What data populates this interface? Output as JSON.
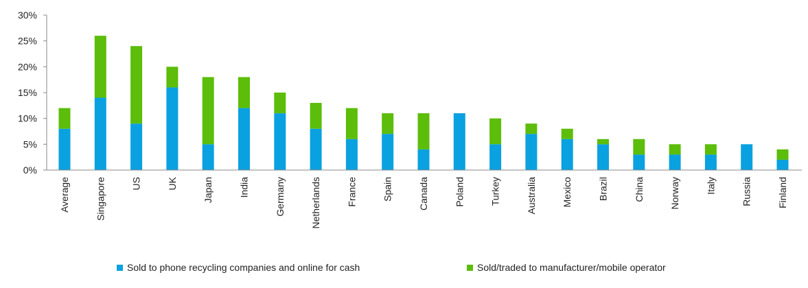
{
  "chart_data": {
    "type": "bar",
    "stacked": true,
    "categories": [
      "Average",
      "Singapore",
      "US",
      "UK",
      "Japan",
      "India",
      "Germany",
      "Netherlands",
      "France",
      "Spain",
      "Canada",
      "Poland",
      "Turkey",
      "Australia",
      "Mexico",
      "Brazil",
      "China",
      "Norway",
      "Italy",
      "Russia",
      "Finland"
    ],
    "series": [
      {
        "name": "Sold to phone recycling companies and online for cash",
        "color": "#0aa1e0",
        "values": [
          8,
          14,
          9,
          16,
          5,
          12,
          11,
          8,
          6,
          7,
          4,
          11,
          5,
          7,
          6,
          5,
          3,
          3,
          3,
          5,
          2
        ]
      },
      {
        "name": "Sold/traded to manufacturer/mobile operator",
        "color": "#5cbd0a",
        "values": [
          4,
          12,
          15,
          4,
          13,
          6,
          4,
          5,
          6,
          4,
          7,
          0,
          5,
          2,
          2,
          1,
          3,
          2,
          2,
          0,
          2
        ]
      }
    ],
    "ylim": [
      0,
      30
    ],
    "yticks": [
      0,
      5,
      10,
      15,
      20,
      25,
      30
    ],
    "ytick_suffix": "%",
    "grid": false,
    "legend_position": "bottom"
  }
}
